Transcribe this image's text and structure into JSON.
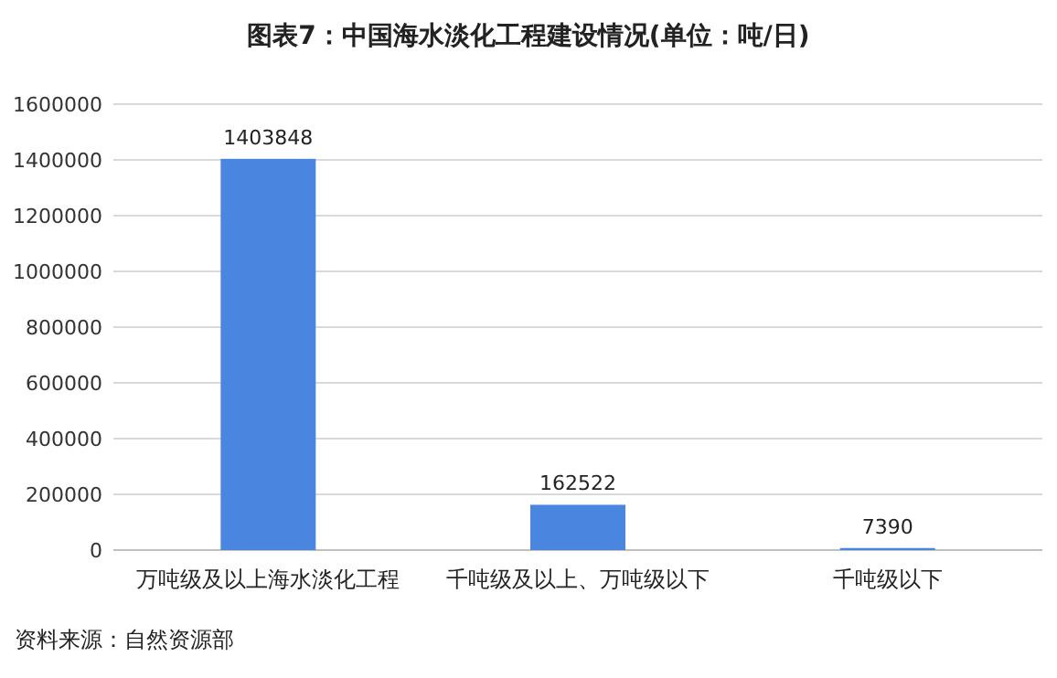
{
  "chart_data": {
    "type": "bar",
    "title": "图表7：中国海水淡化工程建设情况(单位：吨/日)",
    "categories": [
      "万吨级及以上海水淡化工程",
      "千吨级及以上、万吨级以下",
      "千吨级以下"
    ],
    "values": [
      1403848,
      162522,
      7390
    ],
    "color": "#4a86e0",
    "ylim": [
      0,
      1600000
    ],
    "yticks": [
      0,
      200000,
      400000,
      600000,
      800000,
      1000000,
      1200000,
      1400000,
      1600000
    ],
    "grid": "y",
    "data_labels": true,
    "annotations": [
      "资料来源：自然资源部"
    ]
  }
}
